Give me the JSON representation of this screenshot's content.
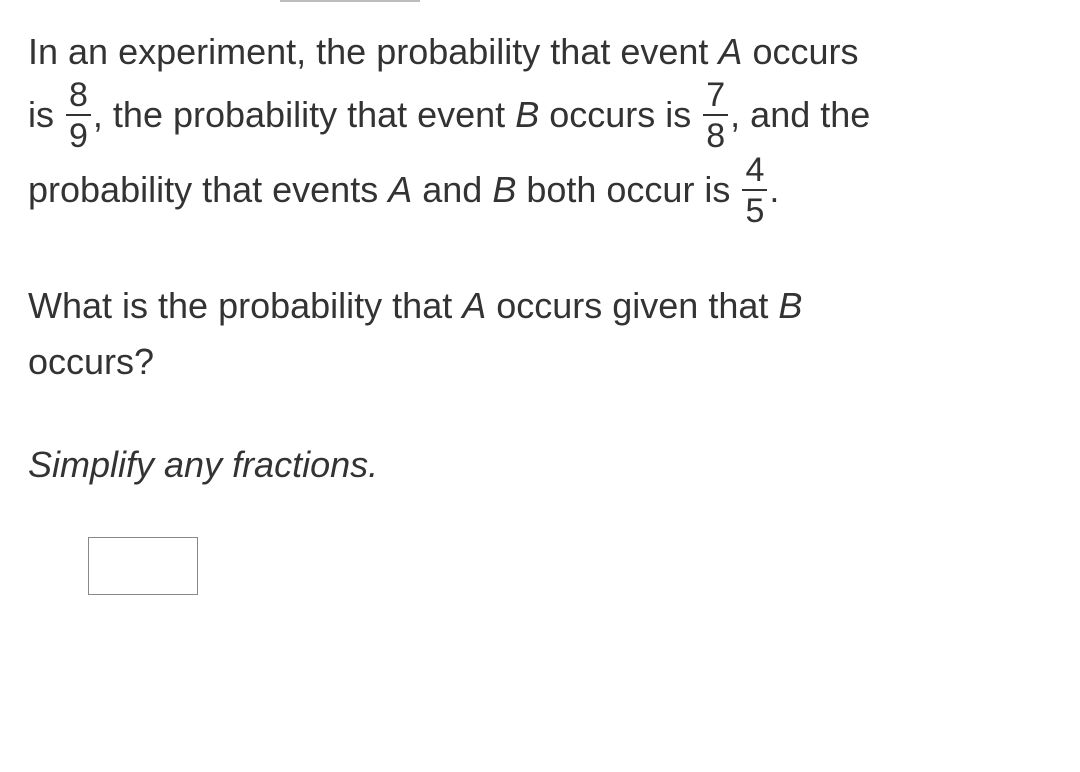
{
  "problem": {
    "line1_a": "In an experiment, the probability that event ",
    "eventA": "A",
    "line1_b": " occurs",
    "line2_a": "is ",
    "fracA_num": "8",
    "fracA_den": "9",
    "line2_b": ", the probability that event ",
    "eventB": "B",
    "line2_c": " occurs is ",
    "fracB_num": "7",
    "fracB_den": "8",
    "line2_d": ", and the",
    "line3_a": "probability that events ",
    "line3_b": " and ",
    "line3_c": " both occur is ",
    "fracAB_num": "4",
    "fracAB_den": "5",
    "line3_d": "."
  },
  "question": {
    "q1_a": "What is the probability that ",
    "q1_b": " occurs given that ",
    "q1_c": "occurs?"
  },
  "instruction": "Simplify any fractions.",
  "colors": {
    "text": "#333333",
    "background": "#ffffff",
    "input_border": "#888888"
  }
}
